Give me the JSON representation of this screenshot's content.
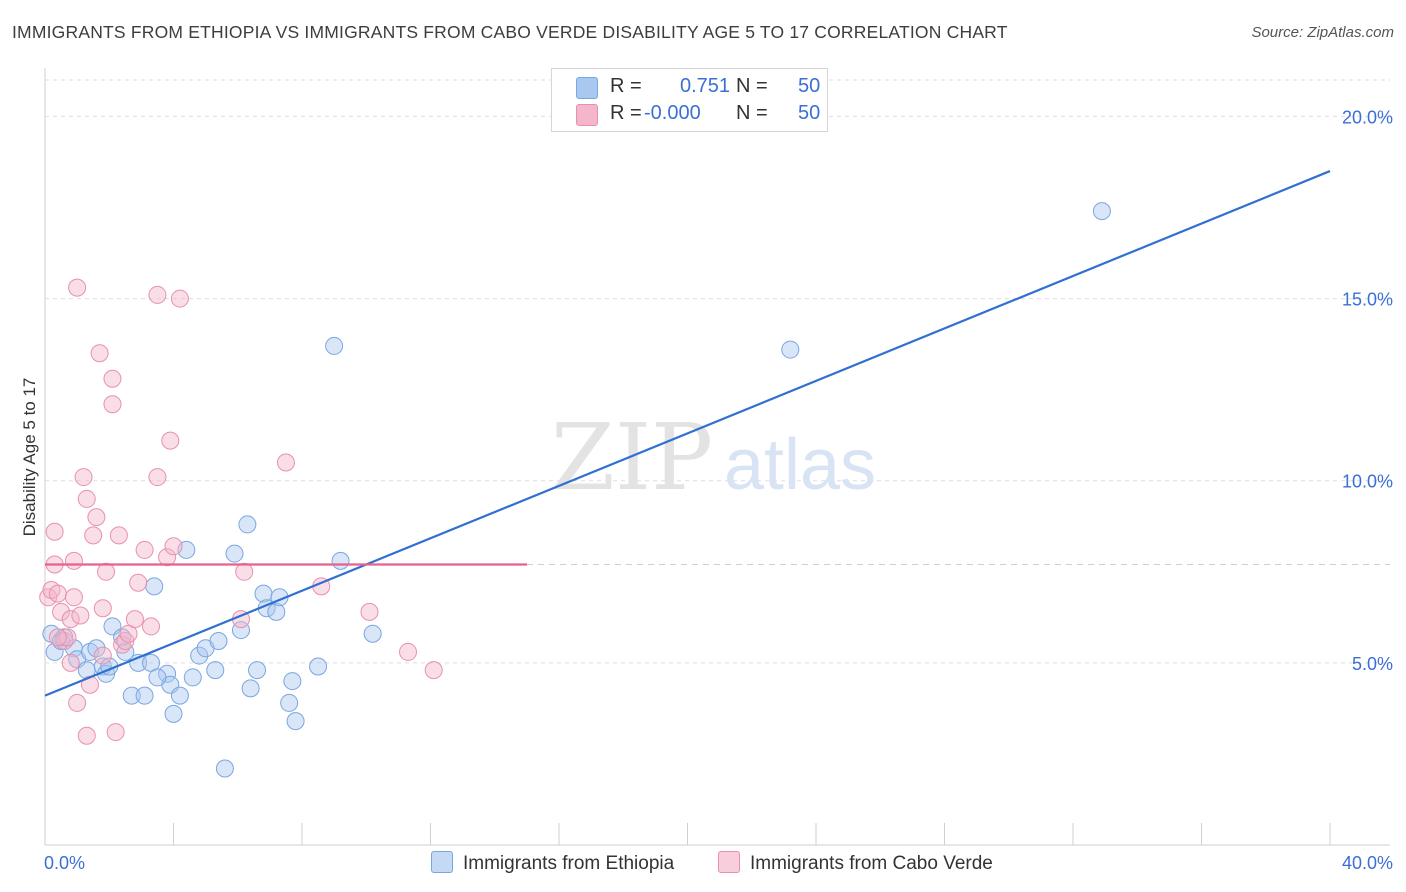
{
  "header": {
    "title": "IMMIGRANTS FROM ETHIOPIA VS IMMIGRANTS FROM CABO VERDE DISABILITY AGE 5 TO 17 CORRELATION CHART",
    "source": "Source: ZipAtlas.com"
  },
  "watermark": {
    "zip": "ZIP",
    "atlas": "atlas"
  },
  "legend": {
    "series1": {
      "r_label": "R =",
      "r_value": "0.751",
      "n_label": "N =",
      "n_value": "50"
    },
    "series2": {
      "r_label": "R =",
      "r_value": "-0.000",
      "n_label": "N =",
      "n_value": "50"
    }
  },
  "colors": {
    "ethiopia_fill": "#a8c8f0",
    "ethiopia_stroke": "#7aa6e0",
    "ethiopia_line": "#3070d0",
    "caboverde_fill": "#f4b6ca",
    "caboverde_stroke": "#e890ae",
    "caboverde_line": "#e8608e",
    "axis_tick_text": "#3b6fd6",
    "grid": "#dddddd"
  },
  "chart_data": {
    "type": "scatter",
    "title": "IMMIGRANTS FROM ETHIOPIA VS IMMIGRANTS FROM CABO VERDE DISABILITY AGE 5 TO 17 CORRELATION CHART",
    "xlabel": "",
    "ylabel": "Disability Age 5 to 17",
    "xlim": [
      0,
      40
    ],
    "ylim": [
      0,
      21
    ],
    "x_tick_labels": [
      "0.0%",
      "40.0%"
    ],
    "y_ticks": [
      5,
      10,
      15,
      20
    ],
    "y_tick_labels": [
      "5.0%",
      "10.0%",
      "15.0%",
      "20.0%"
    ],
    "grid": true,
    "legend_position": "top-center",
    "series": [
      {
        "name": "Immigrants from Ethiopia",
        "r": 0.751,
        "n": 50,
        "trend": {
          "x": [
            0,
            40
          ],
          "y": [
            4.1,
            18.5
          ]
        },
        "points": [
          [
            0.2,
            5.8
          ],
          [
            0.3,
            5.3
          ],
          [
            0.5,
            5.6
          ],
          [
            0.6,
            5.7
          ],
          [
            0.9,
            5.4
          ],
          [
            1.0,
            5.1
          ],
          [
            1.3,
            4.8
          ],
          [
            1.4,
            5.3
          ],
          [
            1.6,
            5.4
          ],
          [
            1.8,
            4.9
          ],
          [
            1.9,
            4.7
          ],
          [
            2.1,
            6.0
          ],
          [
            2.4,
            5.7
          ],
          [
            2.5,
            5.3
          ],
          [
            2.7,
            4.1
          ],
          [
            2.9,
            5.0
          ],
          [
            3.1,
            4.1
          ],
          [
            3.3,
            5.0
          ],
          [
            3.4,
            7.1
          ],
          [
            3.8,
            4.7
          ],
          [
            3.9,
            4.4
          ],
          [
            4.0,
            3.6
          ],
          [
            4.2,
            4.1
          ],
          [
            4.6,
            4.6
          ],
          [
            4.8,
            5.2
          ],
          [
            5.0,
            5.4
          ],
          [
            5.3,
            4.8
          ],
          [
            5.4,
            5.6
          ],
          [
            5.6,
            2.1
          ],
          [
            5.9,
            8.0
          ],
          [
            6.1,
            5.9
          ],
          [
            6.3,
            8.8
          ],
          [
            6.4,
            4.3
          ],
          [
            6.6,
            4.8
          ],
          [
            6.8,
            6.9
          ],
          [
            6.9,
            6.5
          ],
          [
            7.2,
            6.4
          ],
          [
            7.3,
            6.8
          ],
          [
            7.6,
            3.9
          ],
          [
            7.7,
            4.5
          ],
          [
            7.8,
            3.4
          ],
          [
            8.5,
            4.9
          ],
          [
            9.0,
            13.7
          ],
          [
            9.2,
            7.8
          ],
          [
            10.2,
            5.8
          ],
          [
            4.4,
            8.1
          ],
          [
            3.5,
            4.6
          ],
          [
            2.0,
            4.9
          ],
          [
            23.2,
            13.6
          ],
          [
            32.9,
            17.4
          ]
        ]
      },
      {
        "name": "Immigrants from Cabo Verde",
        "r": -0.0,
        "n": 50,
        "trend": {
          "x": [
            0,
            15
          ],
          "y": [
            7.7,
            7.7
          ]
        },
        "points": [
          [
            0.1,
            6.8
          ],
          [
            0.2,
            7.0
          ],
          [
            0.3,
            7.7
          ],
          [
            0.3,
            8.6
          ],
          [
            0.4,
            6.9
          ],
          [
            0.5,
            6.4
          ],
          [
            0.6,
            5.6
          ],
          [
            0.7,
            5.7
          ],
          [
            0.8,
            6.2
          ],
          [
            0.8,
            5.0
          ],
          [
            0.9,
            7.8
          ],
          [
            1.0,
            3.9
          ],
          [
            1.1,
            6.3
          ],
          [
            1.2,
            10.1
          ],
          [
            1.3,
            9.5
          ],
          [
            1.3,
            3.0
          ],
          [
            1.4,
            4.4
          ],
          [
            1.5,
            8.5
          ],
          [
            1.6,
            9.0
          ],
          [
            1.7,
            13.5
          ],
          [
            1.8,
            5.2
          ],
          [
            1.8,
            6.5
          ],
          [
            1.9,
            7.5
          ],
          [
            2.1,
            12.8
          ],
          [
            2.1,
            12.1
          ],
          [
            2.2,
            3.1
          ],
          [
            2.3,
            8.5
          ],
          [
            2.4,
            5.5
          ],
          [
            2.5,
            5.6
          ],
          [
            2.6,
            5.8
          ],
          [
            2.8,
            6.2
          ],
          [
            2.9,
            7.2
          ],
          [
            3.1,
            8.1
          ],
          [
            3.3,
            6.0
          ],
          [
            3.5,
            10.1
          ],
          [
            3.5,
            15.1
          ],
          [
            3.8,
            7.9
          ],
          [
            3.9,
            11.1
          ],
          [
            4.0,
            8.2
          ],
          [
            4.2,
            15.0
          ],
          [
            1.0,
            15.3
          ],
          [
            6.1,
            6.2
          ],
          [
            6.2,
            7.5
          ],
          [
            7.5,
            10.5
          ],
          [
            8.6,
            7.1
          ],
          [
            10.1,
            6.4
          ],
          [
            11.3,
            5.3
          ],
          [
            12.1,
            4.8
          ],
          [
            0.4,
            5.7
          ],
          [
            0.9,
            6.8
          ]
        ]
      }
    ]
  },
  "bottom_legend": {
    "item1": "Immigrants from Ethiopia",
    "item2": "Immigrants from Cabo Verde"
  }
}
